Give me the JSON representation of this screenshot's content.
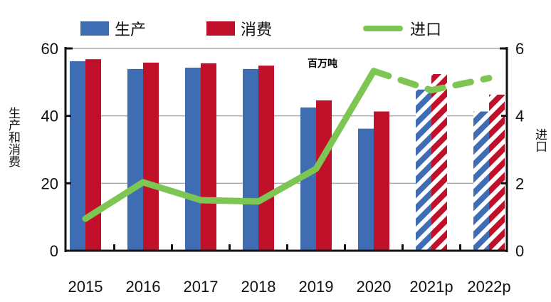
{
  "chart_data": {
    "type": "bar",
    "categories": [
      "2015",
      "2016",
      "2017",
      "2018",
      "2019",
      "2020",
      "2021p",
      "2022p"
    ],
    "projected": [
      false,
      false,
      false,
      false,
      false,
      false,
      true,
      true
    ],
    "series": [
      {
        "name": "生产",
        "kind": "bar",
        "axis": "left",
        "color": "#3f6db3",
        "values": [
          56.2,
          53.9,
          54.3,
          53.9,
          42.5,
          36.2,
          47.8,
          41.3
        ]
      },
      {
        "name": "消费",
        "kind": "bar",
        "axis": "left",
        "color": "#c0102a",
        "values": [
          56.8,
          55.8,
          55.6,
          54.9,
          44.6,
          41.3,
          52.4,
          46.3
        ]
      },
      {
        "name": "进口",
        "kind": "line",
        "axis": "right",
        "color": "#7dc653",
        "values": [
          0.95,
          2.03,
          1.5,
          1.46,
          2.43,
          5.33,
          4.76,
          5.12
        ]
      }
    ],
    "ylabel": "生产和消费",
    "y2label": "进口",
    "unit_note": "百万吨",
    "ylim": [
      0,
      60
    ],
    "y2lim": [
      0,
      6
    ],
    "yticks": [
      0,
      20,
      40,
      60
    ],
    "y2ticks": [
      0,
      2,
      4,
      6
    ],
    "grid": true,
    "legend_position": "top"
  }
}
